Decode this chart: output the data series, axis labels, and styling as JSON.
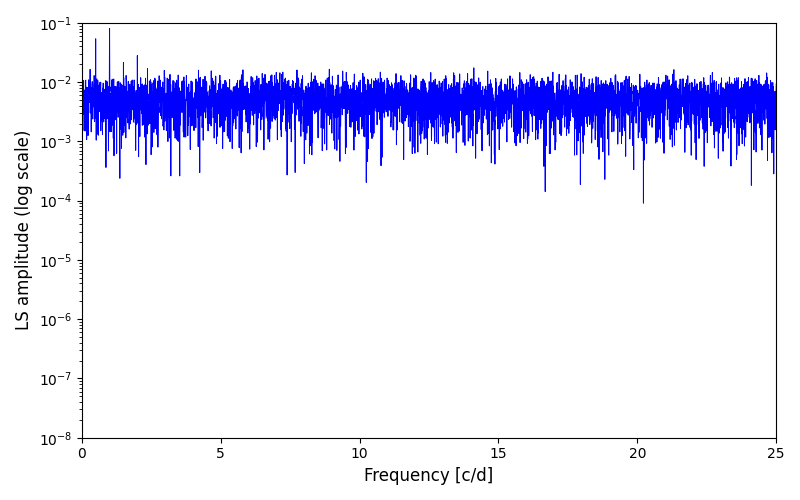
{
  "title": "",
  "xlabel": "Frequency [c/d]",
  "ylabel": "LS amplitude (log scale)",
  "xlim": [
    0,
    25
  ],
  "ylim": [
    1e-08,
    0.1
  ],
  "line_color": "#0000FF",
  "line_width": 0.7,
  "figsize": [
    8.0,
    5.0
  ],
  "dpi": 100,
  "yscale": "log",
  "xticks": [
    0,
    5,
    10,
    15,
    20,
    25
  ],
  "background_color": "#ffffff",
  "seed": 42,
  "n_points": 5000,
  "freq_max": 25.0
}
